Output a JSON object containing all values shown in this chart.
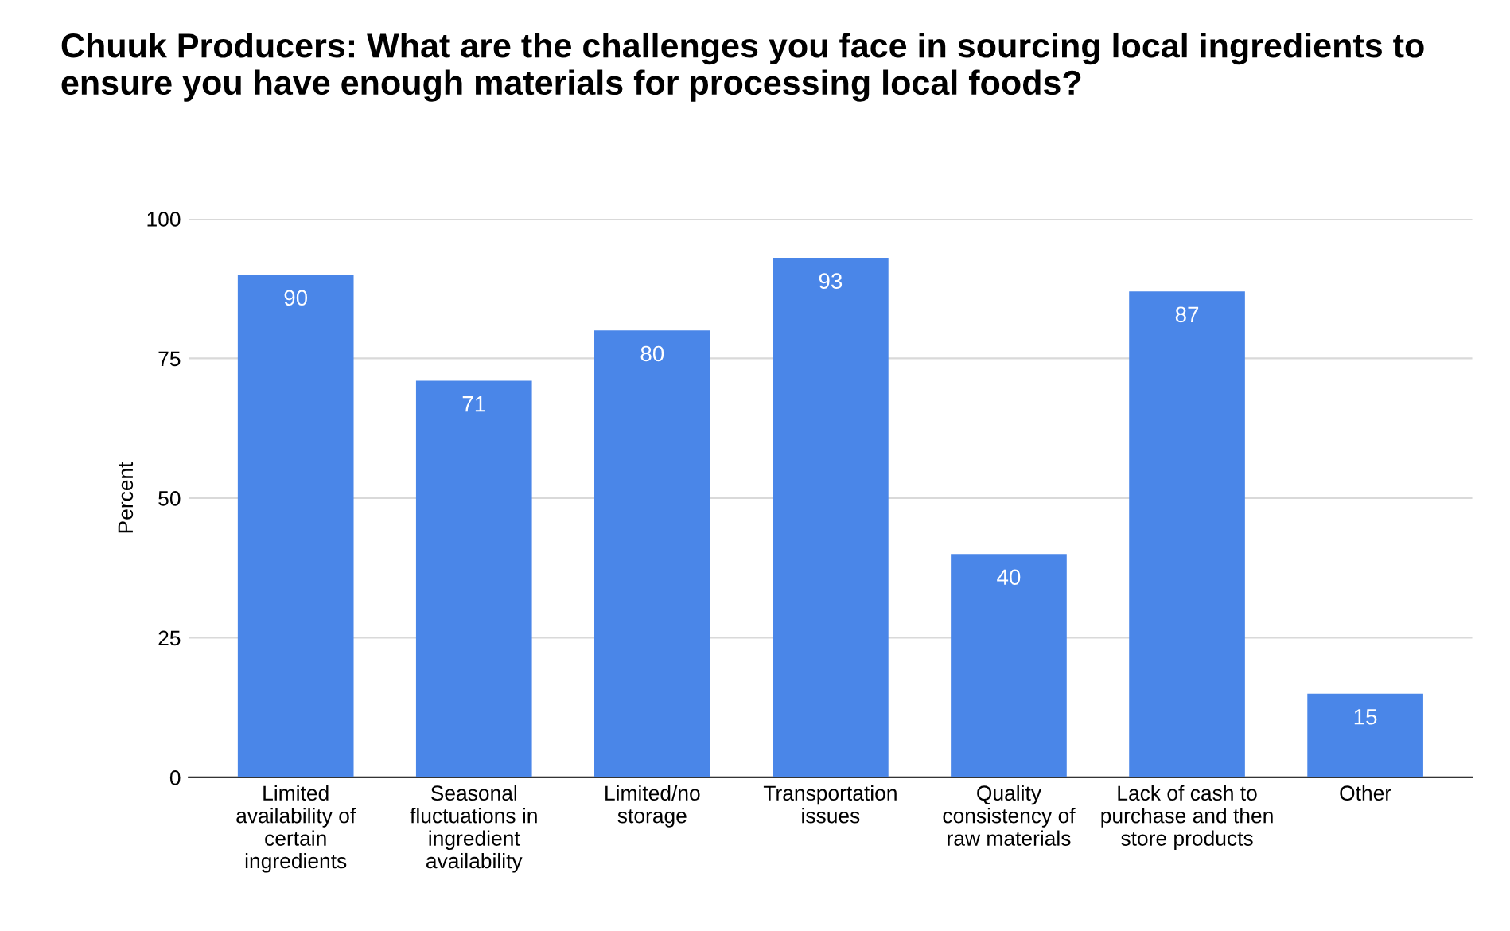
{
  "chart_data": {
    "type": "bar",
    "title": "Chuuk Producers: What are the challenges you face in sourcing local ingredients to ensure you have enough materials for processing local foods?",
    "ylabel": "Percent",
    "categories": [
      "Limited availability of certain ingredients",
      "Seasonal fluctuations in ingredient availability",
      "Limited/no storage",
      "Transportation issues",
      "Quality consistency of raw materials",
      "Lack of cash to purchase and then store products",
      "Other"
    ],
    "values": [
      90,
      71,
      80,
      93,
      40,
      87,
      15
    ],
    "color": "#4a86e8",
    "ylim": [
      0,
      100
    ],
    "yticks": [
      0,
      25,
      50,
      75,
      100
    ],
    "grid": "y",
    "data_labels": true,
    "legend": false
  }
}
